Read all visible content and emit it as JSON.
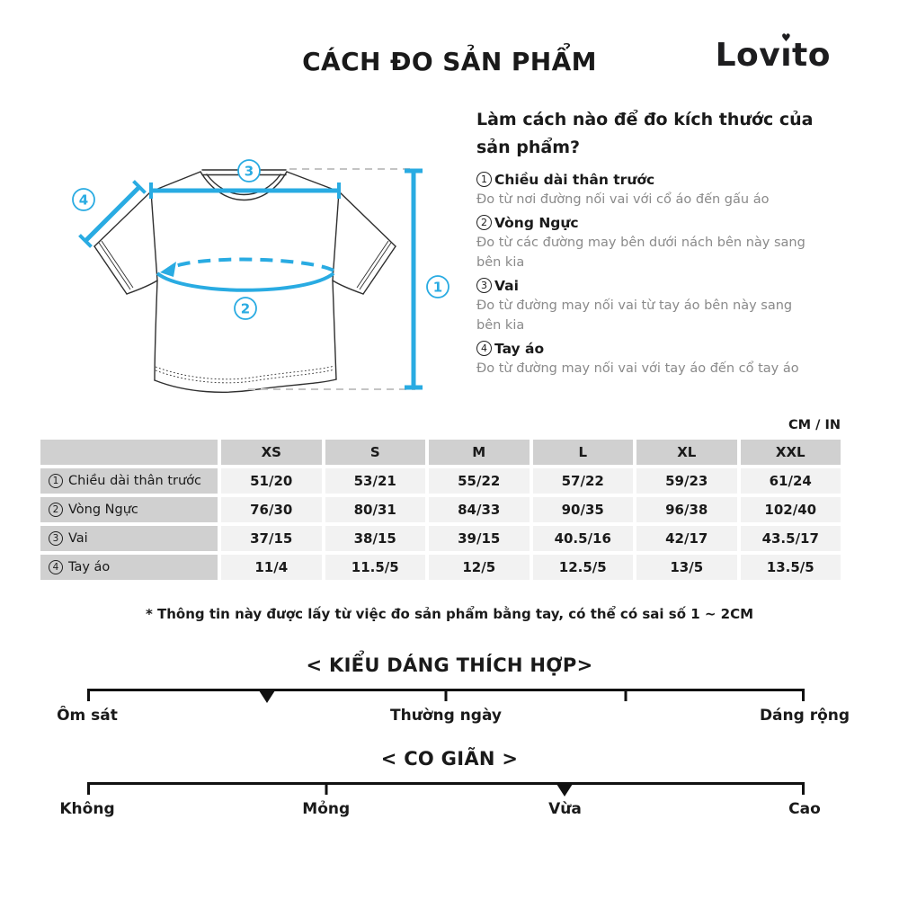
{
  "header": {
    "title": "CÁCH ĐO SẢN PHẨM",
    "logo": {
      "part1": "Lov",
      "dotless_i": "ı",
      "part2": "to",
      "heart": "♥"
    }
  },
  "colors": {
    "accent_cyan": "#29ABE2",
    "text": "#1a1a1a",
    "muted_gray": "#8a8a8a",
    "table_header_bg": "#d0d0d0",
    "table_cell_bg": "#f2f2f2",
    "dashed_gray": "#c4c4c4"
  },
  "diagram": {
    "callouts": {
      "one": "1",
      "two": "2",
      "three": "3",
      "four": "4"
    }
  },
  "guide": {
    "heading": "Làm cách nào để đo kích thước của sản phẩm?",
    "items": [
      {
        "num": "1",
        "label": "Chiều dài thân trước",
        "desc": "Đo từ nơi đường nối vai với cổ áo đến gấu áo"
      },
      {
        "num": "2",
        "label": "Vòng Ngực",
        "desc": "Đo từ các đường may bên dưới nách bên này sang bên kia"
      },
      {
        "num": "3",
        "label": "Vai",
        "desc": "Đo từ đường may nối vai từ tay áo bên này sang bên kia"
      },
      {
        "num": "4",
        "label": "Tay áo",
        "desc": "Đo từ đường may nối vai với tay áo đến cổ tay áo"
      }
    ]
  },
  "table": {
    "unit_label": "CM / IN",
    "columns": [
      "XS",
      "S",
      "M",
      "L",
      "XL",
      "XXL"
    ],
    "rows": [
      {
        "num": "1",
        "label": "Chiều dài thân trước",
        "values": [
          "51/20",
          "53/21",
          "55/22",
          "57/22",
          "59/23",
          "61/24"
        ]
      },
      {
        "num": "2",
        "label": "Vòng Ngực",
        "values": [
          "76/30",
          "80/31",
          "84/33",
          "90/35",
          "96/38",
          "102/40"
        ]
      },
      {
        "num": "3",
        "label": "Vai",
        "values": [
          "37/15",
          "38/15",
          "39/15",
          "40.5/16",
          "42/17",
          "43.5/17"
        ]
      },
      {
        "num": "4",
        "label": "Tay áo",
        "values": [
          "11/4",
          "11.5/5",
          "12/5",
          "12.5/5",
          "13/5",
          "13.5/5"
        ]
      }
    ],
    "footnote": "* Thông tin này được lấy từ việc đo sản phẩm bằng tay, có thể có sai số 1 ~ 2CM"
  },
  "sliders": [
    {
      "title": "< KIỂU DÁNG THÍCH HỢP>",
      "ticks_pct": [
        0,
        50,
        75,
        100
      ],
      "marker_pct": 25,
      "labels": [
        {
          "text": "Ôm sát",
          "pct": 0
        },
        {
          "text": "Thường ngày",
          "pct": 50
        },
        {
          "text": "Dáng rộng",
          "pct": 100
        }
      ]
    },
    {
      "title": "< CO GIÃN >",
      "ticks_pct": [
        0,
        33.3,
        100
      ],
      "marker_pct": 66.6,
      "labels": [
        {
          "text": "Không",
          "pct": 0
        },
        {
          "text": "Mỏng",
          "pct": 33.3
        },
        {
          "text": "Vừa",
          "pct": 66.6
        },
        {
          "text": "Cao",
          "pct": 100
        }
      ]
    }
  ]
}
